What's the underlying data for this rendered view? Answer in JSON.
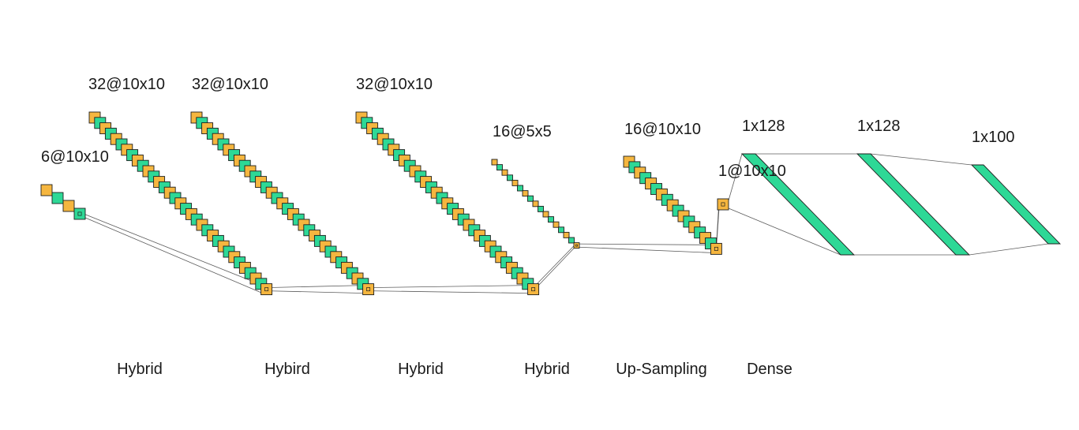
{
  "colors": {
    "feature_map_a": "#f5b63f",
    "feature_map_b": "#2ed896",
    "outline": "#1f1f1f",
    "connector": "#5c5c5c",
    "dense": "#2ed896"
  },
  "blocks": [
    {
      "id": "block-1",
      "size_label": "6@10x10"
    },
    {
      "id": "block-2",
      "size_label": "32@10x10"
    },
    {
      "id": "block-3",
      "size_label": "32@10x10"
    },
    {
      "id": "block-4",
      "size_label": "32@10x10"
    },
    {
      "id": "block-5",
      "size_label": "16@5x5"
    },
    {
      "id": "block-6",
      "size_label": "16@10x10"
    },
    {
      "id": "block-7",
      "size_label": "1@10x10"
    }
  ],
  "dense_layers": [
    {
      "id": "dense-1",
      "size_label": "1x128"
    },
    {
      "id": "dense-2",
      "size_label": "1x128"
    },
    {
      "id": "dense-3",
      "size_label": "1x100"
    }
  ],
  "stage_labels": [
    "Hybrid",
    "Hybird",
    "Hybrid",
    "Hybrid",
    "Up-Sampling",
    "Dense"
  ]
}
